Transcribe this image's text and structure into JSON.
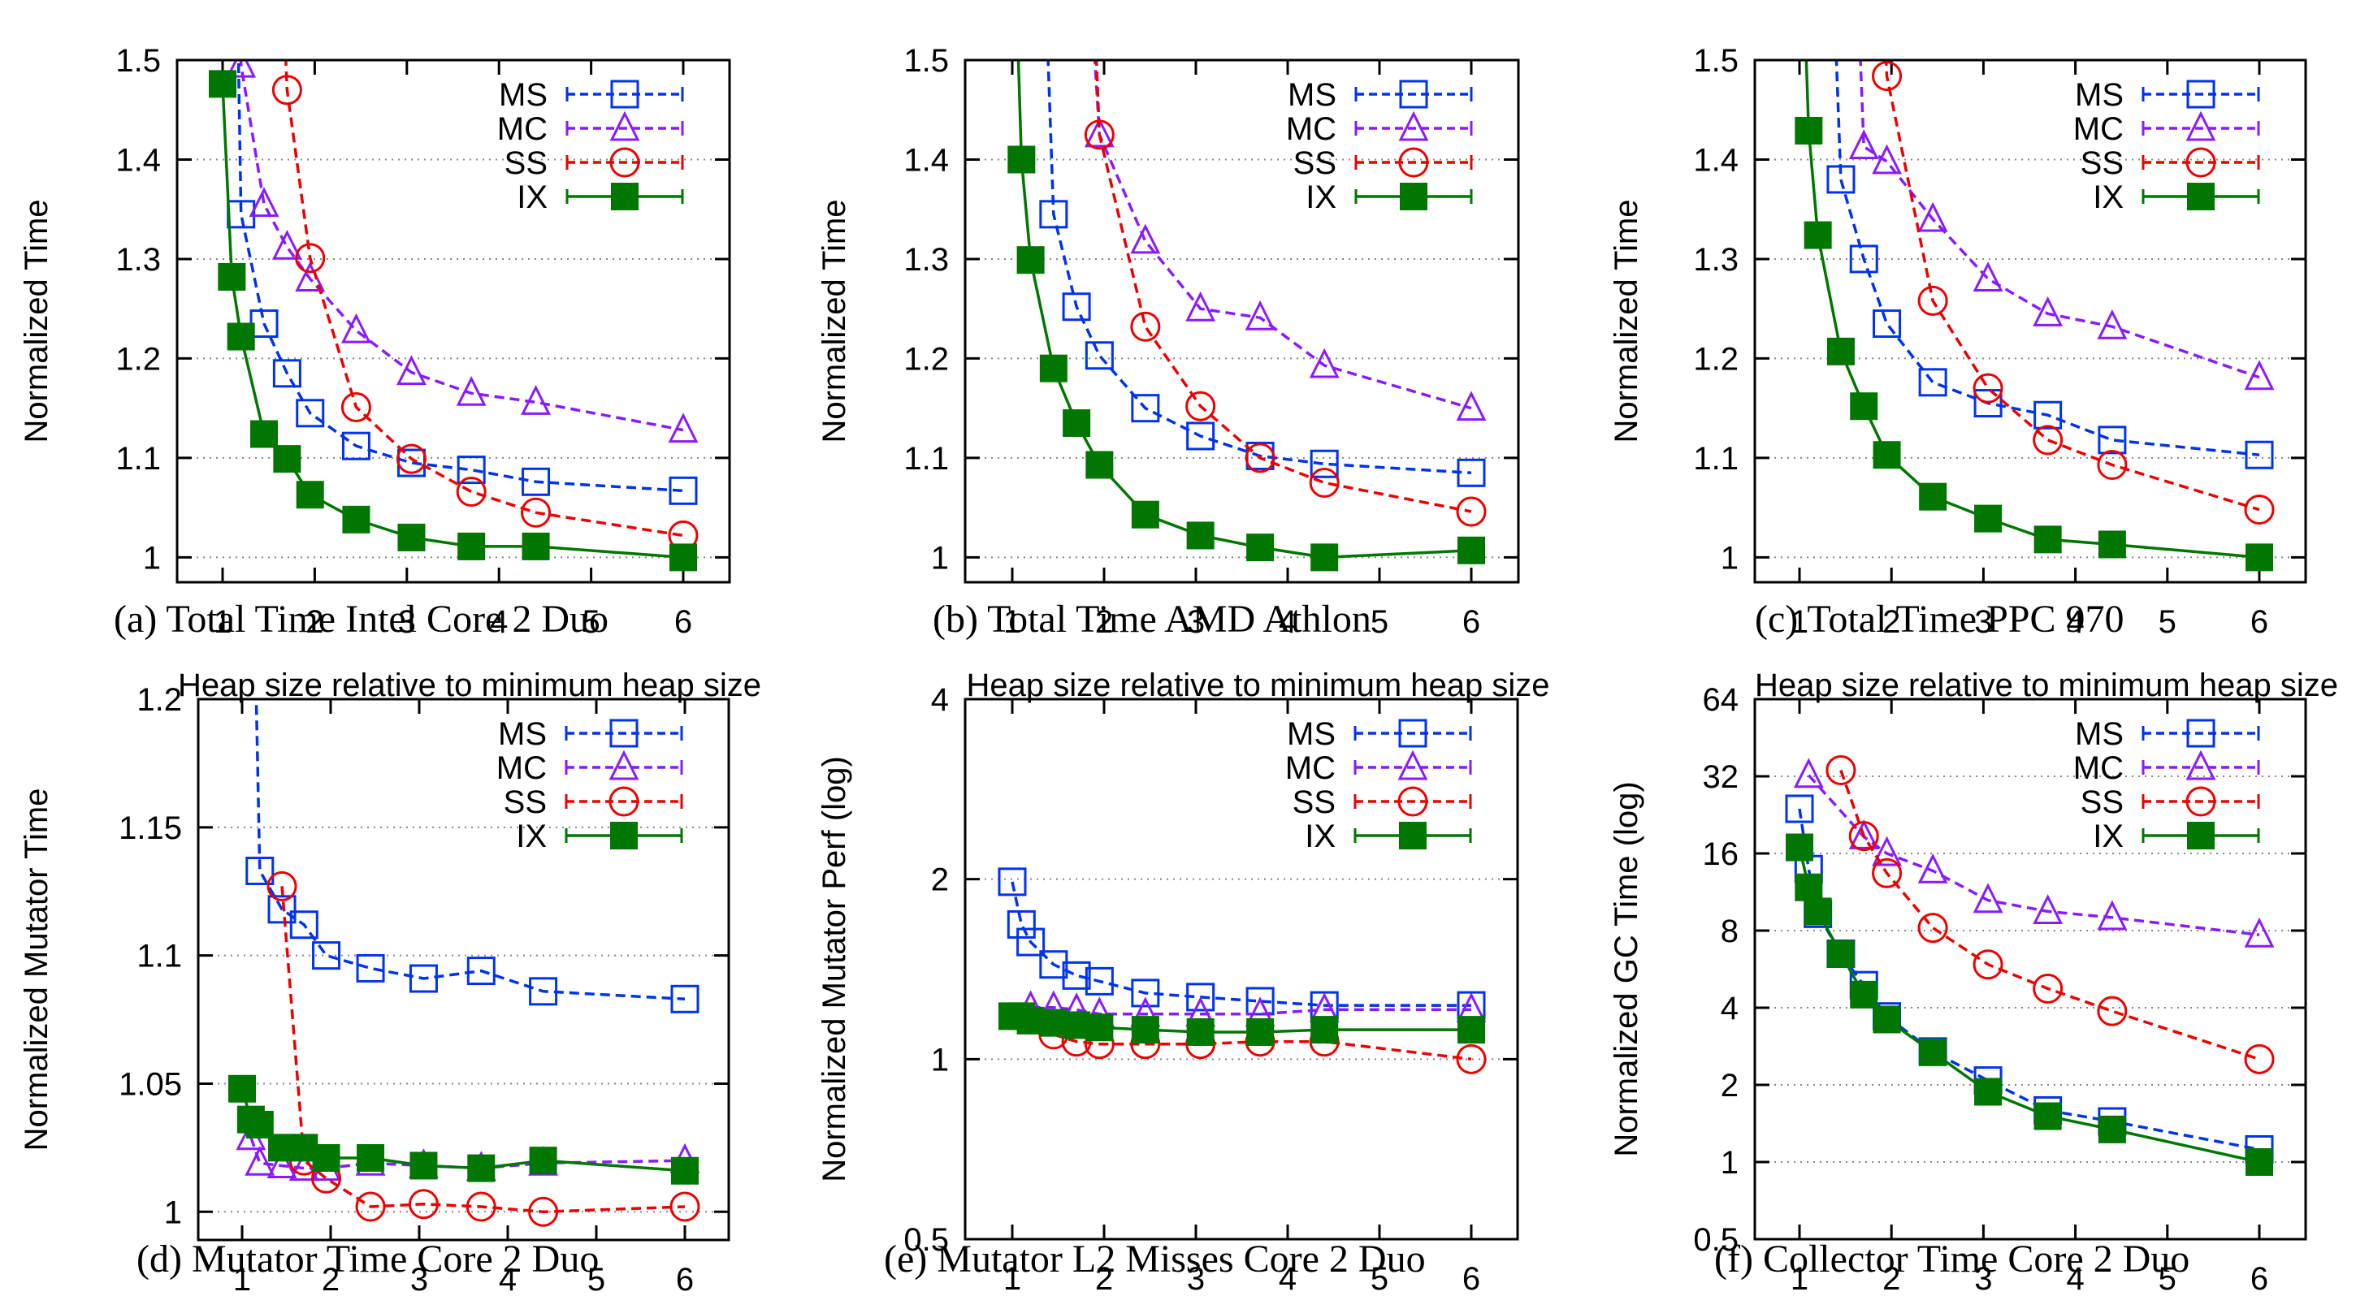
{
  "figure": {
    "x_label": "Heap size relative to minimum heap size",
    "legend": [
      {
        "key": "MS",
        "label": "MS",
        "color": "#0033ee",
        "marker": "open-square",
        "dashed": true
      },
      {
        "key": "MC",
        "label": "MC",
        "color": "#8a1aff",
        "marker": "open-triangle",
        "dashed": true
      },
      {
        "key": "SS",
        "label": "SS",
        "color": "#ee0000",
        "marker": "open-circle",
        "dashed": true
      },
      {
        "key": "IX",
        "label": "IX",
        "color": "#007700",
        "marker": "filled-square",
        "dashed": false
      }
    ]
  },
  "chart_data": [
    {
      "id": "a",
      "type": "line",
      "caption": "(a)  Total Time Intel Core 2 Duo",
      "xlabel": "Heap size relative to minimum heap size",
      "ylabel": "Normalized Time",
      "yscale": "linear",
      "xlim": [
        0.67,
        6.3
      ],
      "ylim": [
        0.975,
        1.5
      ],
      "xticks": [
        1,
        2,
        3,
        4,
        5,
        6
      ],
      "yticks": [
        {
          "v": 1,
          "label": "1"
        },
        {
          "v": 1.1,
          "label": "1.1"
        },
        {
          "v": 1.2,
          "label": "1.2"
        },
        {
          "v": 1.3,
          "label": "1.3"
        },
        {
          "v": 1.4,
          "label": "1.4"
        },
        {
          "v": 1.5,
          "label": "1.5"
        }
      ],
      "grid": true,
      "legend_position": "top-right",
      "x": [
        1.0,
        1.1,
        1.2,
        1.45,
        1.7,
        1.95,
        2.45,
        3.05,
        3.7,
        4.4,
        6.0
      ],
      "series": [
        {
          "name": "MS",
          "values": [
            null,
            1.9,
            1.345,
            1.235,
            1.185,
            1.145,
            1.112,
            1.095,
            1.088,
            1.076,
            1.067
          ]
        },
        {
          "name": "MC",
          "values": [
            null,
            2.0,
            1.495,
            1.355,
            1.312,
            1.28,
            1.228,
            1.186,
            1.165,
            1.156,
            1.128
          ]
        },
        {
          "name": "SS",
          "values": [
            null,
            null,
            null,
            2.0,
            1.47,
            1.301,
            1.151,
            1.099,
            1.066,
            1.045,
            1.022
          ]
        },
        {
          "name": "IX",
          "values": [
            1.476,
            1.282,
            1.222,
            1.124,
            1.099,
            1.063,
            1.038,
            1.02,
            1.011,
            1.011,
            1.0
          ]
        }
      ]
    },
    {
      "id": "b",
      "type": "line",
      "caption": "(b)  Total Time AMD Athlon",
      "xlabel": "Heap size relative to minimum heap size",
      "ylabel": "Normalized Time",
      "yscale": "linear",
      "xlim": [
        0.77,
        6.3
      ],
      "ylim": [
        0.975,
        1.5
      ],
      "xticks": [
        1,
        2,
        3,
        4,
        5,
        6
      ],
      "yticks": [
        {
          "v": 1,
          "label": "1"
        },
        {
          "v": 1.1,
          "label": "1.1"
        },
        {
          "v": 1.2,
          "label": "1.2"
        },
        {
          "v": 1.3,
          "label": "1.3"
        },
        {
          "v": 1.4,
          "label": "1.4"
        },
        {
          "v": 1.5,
          "label": "1.5"
        }
      ],
      "grid": true,
      "legend_position": "top-right",
      "x": [
        1.0,
        1.1,
        1.2,
        1.45,
        1.7,
        1.95,
        2.45,
        3.05,
        3.7,
        4.4,
        6.0
      ],
      "series": [
        {
          "name": "MS",
          "values": [
            null,
            null,
            2.0,
            1.345,
            1.252,
            1.203,
            1.15,
            1.122,
            1.102,
            1.094,
            1.085
          ]
        },
        {
          "name": "MC",
          "values": [
            null,
            null,
            null,
            2.0,
            1.8,
            1.425,
            1.318,
            1.25,
            1.241,
            1.193,
            1.15
          ]
        },
        {
          "name": "SS",
          "values": [
            null,
            null,
            null,
            null,
            2.0,
            1.425,
            1.232,
            1.152,
            1.1,
            1.075,
            1.046
          ]
        },
        {
          "name": "IX",
          "values": [
            1.7,
            1.4,
            1.299,
            1.19,
            1.135,
            1.093,
            1.043,
            1.022,
            1.01,
            1.0,
            1.007
          ]
        }
      ]
    },
    {
      "id": "c",
      "type": "line",
      "caption": "(c)  Total Time PPC 970",
      "xlabel": "Heap size relative to minimum heap size",
      "ylabel": "Normalized Time",
      "yscale": "linear",
      "xlim": [
        0.77,
        6.3
      ],
      "ylim": [
        0.975,
        1.5
      ],
      "xticks": [
        1,
        2,
        3,
        4,
        5,
        6
      ],
      "yticks": [
        {
          "v": 1,
          "label": "1"
        },
        {
          "v": 1.1,
          "label": "1.1"
        },
        {
          "v": 1.2,
          "label": "1.2"
        },
        {
          "v": 1.3,
          "label": "1.3"
        },
        {
          "v": 1.4,
          "label": "1.4"
        },
        {
          "v": 1.5,
          "label": "1.5"
        }
      ],
      "grid": true,
      "legend_position": "top-right",
      "x": [
        1.0,
        1.1,
        1.2,
        1.45,
        1.7,
        1.95,
        2.45,
        3.05,
        3.7,
        4.4,
        6.0
      ],
      "series": [
        {
          "name": "MS",
          "values": [
            null,
            null,
            2.0,
            1.38,
            1.3,
            1.235,
            1.176,
            1.155,
            1.143,
            1.118,
            1.103
          ]
        },
        {
          "name": "MC",
          "values": [
            null,
            null,
            null,
            2.0,
            1.413,
            1.398,
            1.34,
            1.28,
            1.245,
            1.232,
            1.181
          ]
        },
        {
          "name": "SS",
          "values": [
            null,
            null,
            null,
            null,
            2.0,
            1.484,
            1.258,
            1.17,
            1.118,
            1.093,
            1.048
          ]
        },
        {
          "name": "IX",
          "values": [
            1.7,
            1.429,
            1.324,
            1.207,
            1.152,
            1.103,
            1.061,
            1.039,
            1.018,
            1.013,
            1.0
          ]
        }
      ]
    },
    {
      "id": "d",
      "type": "line",
      "caption": "(d)  Mutator Time Core 2 Duo",
      "xlabel": "Heap size relative to minimum heap size",
      "ylabel": "Normalized Mutator Time",
      "yscale": "linear",
      "xlim": [
        0.77,
        6.3
      ],
      "ylim": [
        0.989,
        1.2
      ],
      "xticks": [
        1,
        2,
        3,
        4,
        5,
        6
      ],
      "yticks": [
        {
          "v": 1,
          "label": "1"
        },
        {
          "v": 1.05,
          "label": "1.05"
        },
        {
          "v": 1.1,
          "label": "1.1"
        },
        {
          "v": 1.15,
          "label": "1.15"
        },
        {
          "v": 1.2,
          "label": "1.2"
        }
      ],
      "grid": true,
      "legend_position": "top-right",
      "x": [
        1.0,
        1.1,
        1.2,
        1.45,
        1.7,
        1.95,
        2.45,
        3.05,
        3.7,
        4.4,
        6.0
      ],
      "series": [
        {
          "name": "MS",
          "values": [
            null,
            1.3,
            1.133,
            1.118,
            1.112,
            1.1,
            1.095,
            1.091,
            1.094,
            1.086,
            1.083
          ]
        },
        {
          "name": "MC",
          "values": [
            null,
            1.029,
            1.019,
            1.018,
            1.017,
            1.017,
            1.019,
            1.018,
            1.017,
            1.019,
            1.02
          ]
        },
        {
          "name": "SS",
          "values": [
            null,
            null,
            null,
            1.127,
            1.02,
            1.013,
            1.002,
            1.003,
            1.002,
            1.0,
            1.002
          ]
        },
        {
          "name": "IX",
          "values": [
            1.048,
            1.036,
            1.034,
            1.025,
            1.025,
            1.021,
            1.021,
            1.018,
            1.017,
            1.02,
            1.016
          ]
        }
      ]
    },
    {
      "id": "e",
      "type": "line",
      "caption": "(e)  Mutator L2 Misses Core 2 Duo",
      "xlabel": "Heap size relative to minimum heap size",
      "ylabel": "Normalized Mutator Perf (log)",
      "yscale": "log2",
      "xlim": [
        0.77,
        6.3
      ],
      "ylim": [
        0.5,
        4
      ],
      "xticks": [
        1,
        2,
        3,
        4,
        5,
        6
      ],
      "yticks": [
        {
          "v": 0.5,
          "label": "0.5"
        },
        {
          "v": 1,
          "label": "1"
        },
        {
          "v": 2,
          "label": "2"
        },
        {
          "v": 4,
          "label": "4"
        }
      ],
      "grid": true,
      "legend_position": "top-right",
      "x": [
        1.0,
        1.1,
        1.2,
        1.45,
        1.7,
        1.95,
        2.45,
        3.05,
        3.7,
        4.4,
        6.0
      ],
      "series": [
        {
          "name": "MS",
          "values": [
            1.98,
            1.68,
            1.57,
            1.44,
            1.38,
            1.35,
            1.29,
            1.27,
            1.25,
            1.23,
            1.23
          ]
        },
        {
          "name": "MC",
          "values": [
            null,
            null,
            1.22,
            1.22,
            1.21,
            1.19,
            1.19,
            1.19,
            1.19,
            1.21,
            1.21
          ]
        },
        {
          "name": "SS",
          "values": [
            null,
            null,
            null,
            1.1,
            1.07,
            1.06,
            1.06,
            1.06,
            1.07,
            1.07,
            1.0
          ]
        },
        {
          "name": "IX",
          "values": [
            1.18,
            1.18,
            1.16,
            1.15,
            1.14,
            1.13,
            1.12,
            1.11,
            1.11,
            1.12,
            1.12
          ]
        }
      ]
    },
    {
      "id": "f",
      "type": "line",
      "caption": "(f)  Collector Time Core 2 Duo",
      "xlabel": "Heap size relative to minimum heap size",
      "ylabel": "Normalized GC Time (log)",
      "yscale": "log2",
      "xlim": [
        0.77,
        6.3
      ],
      "ylim": [
        0.5,
        64
      ],
      "xticks": [
        1,
        2,
        3,
        4,
        5,
        6
      ],
      "yticks": [
        {
          "v": 0.5,
          "label": "0.5"
        },
        {
          "v": 1,
          "label": "1"
        },
        {
          "v": 2,
          "label": "2"
        },
        {
          "v": 4,
          "label": "4"
        },
        {
          "v": 8,
          "label": "8"
        },
        {
          "v": 16,
          "label": "16"
        },
        {
          "v": 32,
          "label": "32"
        },
        {
          "v": 64,
          "label": "64"
        }
      ],
      "grid": true,
      "legend_position": "top-right",
      "x": [
        1.0,
        1.1,
        1.2,
        1.45,
        1.7,
        1.95,
        2.45,
        3.05,
        3.7,
        4.4,
        6.0
      ],
      "series": [
        {
          "name": "MS",
          "values": [
            23.9,
            13.9,
            9.3,
            6.5,
            4.9,
            3.7,
            2.7,
            2.08,
            1.59,
            1.44,
            1.12
          ]
        },
        {
          "name": "MC",
          "values": [
            null,
            32.3,
            null,
            null,
            18.6,
            16.0,
            13.7,
            10.5,
            9.5,
            9.0,
            7.7
          ]
        },
        {
          "name": "SS",
          "values": [
            null,
            null,
            null,
            33.8,
            18.7,
            13.4,
            8.2,
            5.9,
            4.75,
            3.88,
            2.52
          ]
        },
        {
          "name": "IX",
          "values": [
            16.9,
            11.8,
            9.5,
            6.5,
            4.5,
            3.6,
            2.68,
            1.88,
            1.51,
            1.34,
            1.0
          ]
        }
      ]
    }
  ]
}
